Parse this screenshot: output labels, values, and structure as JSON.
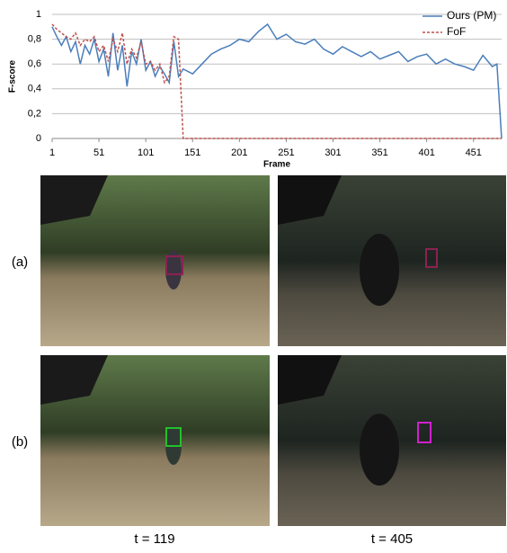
{
  "chart_data": {
    "type": "line",
    "y_label": "F-score",
    "x_label": "Frame",
    "x": [
      1,
      6,
      11,
      16,
      21,
      26,
      31,
      36,
      41,
      46,
      51,
      56,
      61,
      66,
      71,
      76,
      81,
      86,
      91,
      96,
      101,
      106,
      111,
      116,
      121,
      126,
      131,
      136,
      141,
      151,
      161,
      171,
      181,
      191,
      201,
      211,
      221,
      231,
      241,
      251,
      261,
      271,
      281,
      291,
      301,
      311,
      321,
      331,
      341,
      351,
      361,
      371,
      381,
      391,
      401,
      411,
      421,
      431,
      441,
      451,
      461,
      471,
      476,
      481
    ],
    "series": [
      {
        "name": "Ours (PM)",
        "color": "#4a7ebb",
        "dashed": false,
        "values": [
          0.9,
          0.82,
          0.75,
          0.82,
          0.7,
          0.78,
          0.6,
          0.75,
          0.68,
          0.8,
          0.62,
          0.72,
          0.5,
          0.85,
          0.55,
          0.75,
          0.42,
          0.7,
          0.6,
          0.8,
          0.55,
          0.62,
          0.5,
          0.58,
          0.52,
          0.45,
          0.78,
          0.5,
          0.56,
          0.52,
          0.6,
          0.68,
          0.72,
          0.75,
          0.8,
          0.78,
          0.86,
          0.92,
          0.8,
          0.84,
          0.78,
          0.76,
          0.8,
          0.72,
          0.68,
          0.74,
          0.7,
          0.66,
          0.7,
          0.64,
          0.67,
          0.7,
          0.62,
          0.66,
          0.68,
          0.6,
          0.64,
          0.6,
          0.58,
          0.55,
          0.67,
          0.58,
          0.6,
          0
        ]
      },
      {
        "name": "FoF",
        "color": "#c0504d",
        "dashed": true,
        "values": [
          0.92,
          0.88,
          0.85,
          0.82,
          0.8,
          0.85,
          0.75,
          0.8,
          0.78,
          0.82,
          0.7,
          0.75,
          0.62,
          0.8,
          0.7,
          0.85,
          0.6,
          0.72,
          0.65,
          0.78,
          0.6,
          0.62,
          0.55,
          0.6,
          0.45,
          0.5,
          0.82,
          0.8,
          0,
          0,
          0,
          0,
          0,
          0,
          0,
          0,
          0,
          0,
          0,
          0,
          0,
          0,
          0,
          0,
          0,
          0,
          0,
          0,
          0,
          0,
          0,
          0,
          0,
          0,
          0,
          0,
          0,
          0,
          0,
          0,
          0,
          0,
          0,
          0
        ]
      }
    ],
    "xlim": [
      1,
      481
    ],
    "xticks": [
      1,
      51,
      101,
      151,
      201,
      251,
      301,
      351,
      401,
      451
    ],
    "ylim": [
      0,
      1
    ],
    "yticks": [
      0,
      {
        "value": 0.2,
        "label": "0,2"
      },
      {
        "value": 0.4,
        "label": "0,4"
      },
      {
        "value": 0.6,
        "label": "0,6"
      },
      {
        "value": 0.8,
        "label": "0,8"
      },
      1
    ],
    "grid": true,
    "legend": "top-right"
  },
  "figure": {
    "rows": [
      "(a)",
      "(b)"
    ],
    "columns": [
      "t = 119",
      "t = 405"
    ]
  }
}
